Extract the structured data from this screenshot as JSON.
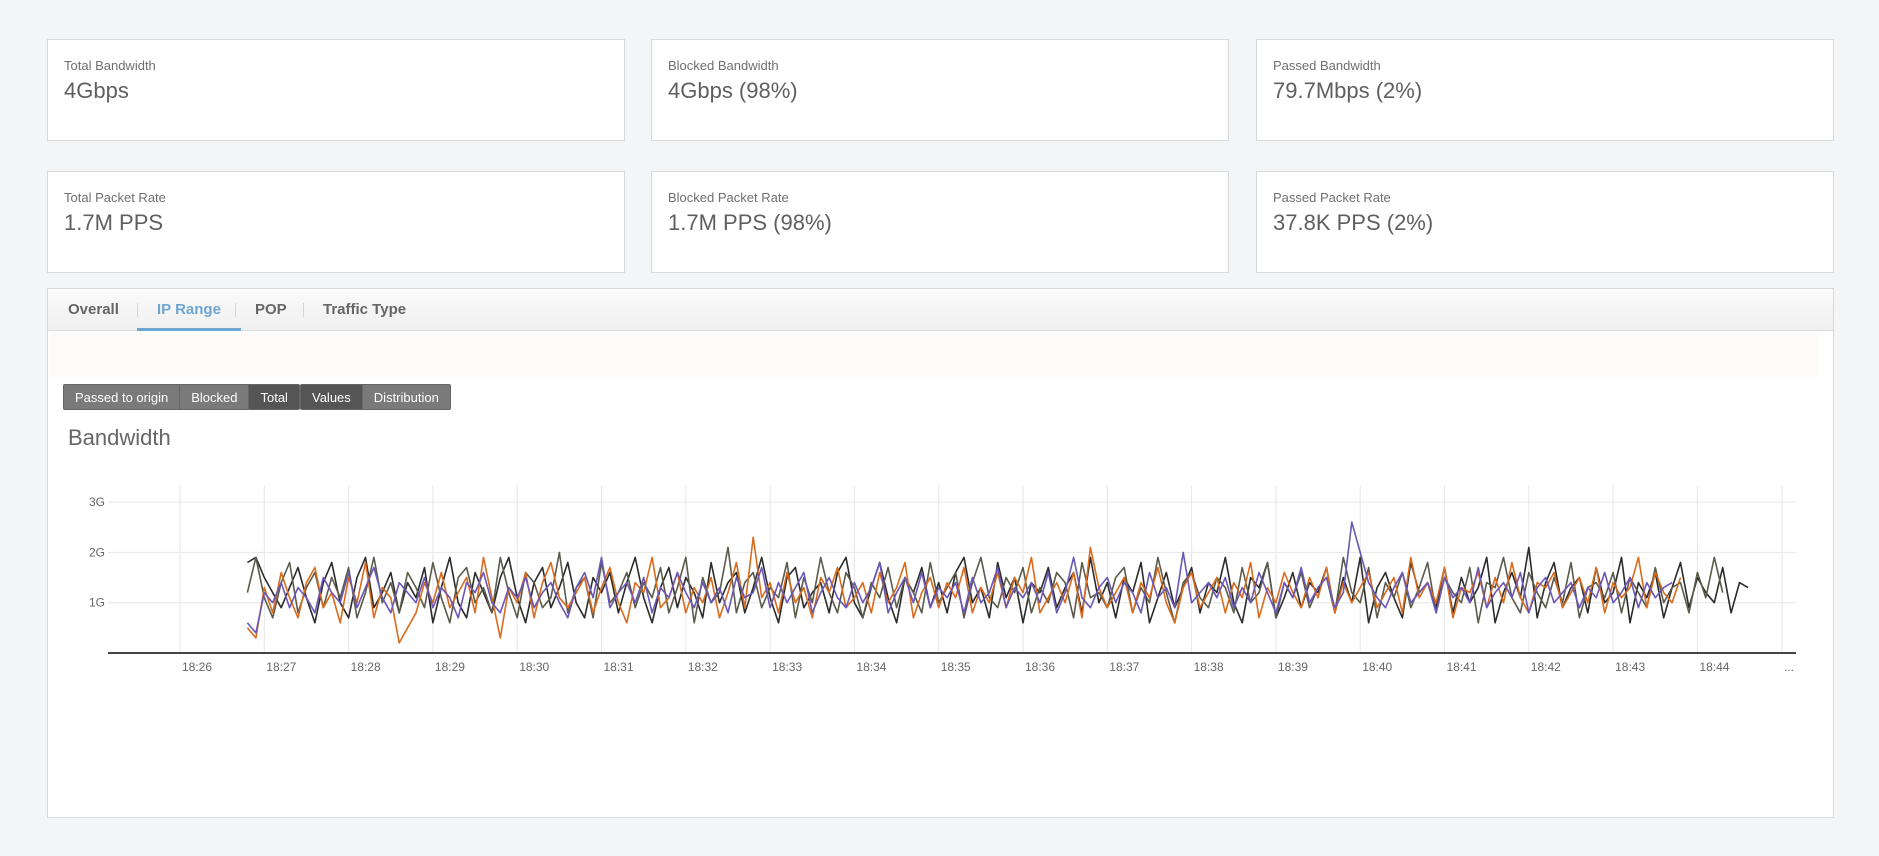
{
  "stats": [
    {
      "label": "Total Bandwidth",
      "value": "4Gbps"
    },
    {
      "label": "Blocked Bandwidth",
      "value": "4Gbps (98%)"
    },
    {
      "label": "Passed Bandwidth",
      "value": "79.7Mbps (2%)"
    },
    {
      "label": "Total Packet Rate",
      "value": "1.7M PPS"
    },
    {
      "label": "Blocked Packet Rate",
      "value": "1.7M PPS (98%)"
    },
    {
      "label": "Passed Packet Rate",
      "value": "37.8K PPS (2%)"
    }
  ],
  "tabs": [
    {
      "label": "Overall",
      "active": false
    },
    {
      "label": "IP Range",
      "active": true
    },
    {
      "label": "POP",
      "active": false
    },
    {
      "label": "Traffic Type",
      "active": false
    }
  ],
  "filters": {
    "traffic": [
      {
        "label": "Passed to origin",
        "active": false
      },
      {
        "label": "Blocked",
        "active": false
      },
      {
        "label": "Total",
        "active": true
      }
    ],
    "view": [
      {
        "label": "Values",
        "active": true
      },
      {
        "label": "Distribution",
        "active": false
      }
    ]
  },
  "chart_title": "Bandwidth",
  "chart_data": {
    "type": "line",
    "title": "Bandwidth",
    "xlabel": "",
    "ylabel": "",
    "y_tick_labels": [
      "1G",
      "2G",
      "3G"
    ],
    "ylim": [
      0,
      3.3
    ],
    "x_tick_labels": [
      "18:26",
      "18:27",
      "18:28",
      "18:29",
      "18:30",
      "18:31",
      "18:32",
      "18:33",
      "18:34",
      "18:35",
      "18:36",
      "18:37",
      "18:38",
      "18:39",
      "18:40",
      "18:41",
      "18:42",
      "18:43",
      "18:44",
      "..."
    ],
    "x_start": "18:26:48",
    "x_step_seconds": 6,
    "grid": true,
    "series": [
      {
        "color": "#2b2b2b",
        "values": [
          1.8,
          1.9,
          1.5,
          1.2,
          0.9,
          1.3,
          1.7,
          1.1,
          0.6,
          1.4,
          1.8,
          1.0,
          0.7,
          1.5,
          1.9,
          0.9,
          1.2,
          1.6,
          0.8,
          1.4,
          1.1,
          1.7,
          0.6,
          1.3,
          1.9,
          1.0,
          0.7,
          1.6,
          1.2,
          0.8,
          1.5,
          1.9,
          1.1,
          0.6,
          1.4,
          1.7,
          0.9,
          1.3,
          1.8,
          1.0,
          0.7,
          1.5,
          1.2,
          1.6,
          0.8,
          1.4,
          1.9,
          1.1,
          0.6,
          1.3,
          1.7,
          0.9,
          1.5,
          1.2,
          0.7,
          1.8,
          1.0,
          1.4,
          1.6,
          0.8,
          1.3,
          1.9,
          1.1,
          0.6,
          1.5,
          1.7,
          0.9,
          1.2,
          1.4,
          0.8,
          1.6,
          1.9,
          1.0,
          0.7,
          1.3,
          1.8,
          1.1,
          0.6,
          1.5,
          1.2,
          1.7,
          0.9,
          1.4,
          0.8,
          1.6,
          1.9,
          1.0,
          1.3,
          0.7,
          1.8,
          1.1,
          1.5,
          0.6,
          1.4,
          1.2,
          1.7,
          0.9,
          1.3,
          1.6,
          0.8,
          1.9,
          1.0,
          1.4,
          0.7,
          1.5,
          1.2,
          1.8,
          0.6,
          1.1,
          1.6,
          0.9,
          1.3,
          1.7,
          0.8,
          1.4,
          1.2,
          1.9,
          1.0,
          0.6,
          1.5,
          1.3,
          1.8,
          0.7,
          1.1,
          1.6,
          0.9,
          1.4,
          1.2,
          1.7,
          0.8,
          1.5,
          1.0,
          1.9,
          0.6,
          1.3,
          1.6,
          1.1,
          0.7,
          1.8,
          1.2,
          1.4,
          0.9,
          1.7,
          0.8,
          1.5,
          1.0,
          1.3,
          1.9,
          0.6,
          1.2,
          1.6,
          1.1,
          2.1,
          0.7,
          1.4,
          1.8,
          0.9,
          1.3,
          1.5,
          0.8,
          1.7,
          1.0,
          1.2,
          1.9,
          0.6,
          1.4,
          1.1,
          1.6,
          0.7,
          1.3,
          1.8,
          0.9,
          1.5,
          1.2,
          1.0,
          1.7,
          0.8,
          1.4,
          1.3
        ]
      },
      {
        "color": "#5b5b4b",
        "values": [
          1.2,
          1.9,
          1.1,
          0.7,
          1.4,
          1.8,
          0.8,
          1.3,
          1.6,
          0.9,
          1.5,
          1.1,
          1.7,
          0.7,
          1.2,
          1.9,
          1.0,
          1.4,
          0.8,
          1.6,
          1.3,
          0.9,
          1.8,
          1.1,
          0.6,
          1.5,
          1.7,
          1.0,
          1.3,
          0.8,
          1.9,
          1.2,
          0.7,
          1.6,
          1.4,
          0.9,
          1.1,
          2.0,
          0.8,
          1.3,
          1.5,
          0.7,
          1.8,
          1.0,
          1.2,
          1.6,
          0.9,
          1.4,
          1.1,
          1.7,
          0.8,
          1.3,
          1.9,
          0.6,
          1.5,
          1.0,
          1.2,
          2.1,
          0.8,
          1.4,
          1.6,
          0.9,
          1.3,
          1.1,
          1.8,
          0.7,
          1.5,
          1.0,
          1.9,
          1.2,
          0.8,
          1.6,
          1.3,
          0.7,
          1.4,
          1.1,
          1.7,
          0.9,
          1.5,
          1.2,
          0.8,
          1.8,
          1.0,
          1.3,
          1.6,
          0.7,
          1.4,
          1.9,
          1.1,
          0.9,
          1.5,
          1.2,
          1.7,
          0.8,
          1.3,
          1.0,
          1.6,
          1.4,
          0.7,
          1.8,
          1.1,
          1.2,
          0.9,
          1.5,
          1.7,
          0.8,
          1.3,
          1.0,
          1.9,
          1.2,
          0.6,
          1.4,
          1.6,
          1.1,
          0.9,
          1.5,
          1.3,
          0.8,
          1.7,
          1.0,
          1.2,
          1.8,
          0.7,
          1.4,
          1.1,
          1.6,
          0.9,
          1.3,
          1.5,
          0.8,
          1.9,
          1.2,
          1.0,
          1.7,
          0.7,
          1.4,
          1.1,
          1.6,
          0.9,
          1.3,
          1.8,
          0.8,
          1.5,
          1.2,
          1.0,
          1.7,
          0.6,
          1.4,
          1.3,
          1.9,
          1.1,
          0.8,
          1.6,
          1.2,
          0.9,
          1.5,
          1.0,
          1.8,
          0.7,
          1.3,
          1.4,
          1.1,
          1.6,
          0.8,
          1.5,
          1.2,
          0.9,
          1.7,
          1.0,
          1.3,
          1.4,
          0.8,
          1.6,
          1.1,
          1.9,
          1.2
        ]
      },
      {
        "color": "#d96b1c",
        "values": [
          0.5,
          0.3,
          1.3,
          0.8,
          1.6,
          1.1,
          0.7,
          1.4,
          1.7,
          0.9,
          1.2,
          0.6,
          1.5,
          1.0,
          1.8,
          0.7,
          1.3,
          1.1,
          0.2,
          0.5,
          0.8,
          1.4,
          1.0,
          1.6,
          0.9,
          1.2,
          1.5,
          0.8,
          1.9,
          1.1,
          0.3,
          1.3,
          1.0,
          1.6,
          0.7,
          1.4,
          1.8,
          1.1,
          0.9,
          1.2,
          1.5,
          0.8,
          1.3,
          1.7,
          1.0,
          0.6,
          1.4,
          1.2,
          1.9,
          0.9,
          1.1,
          1.6,
          0.8,
          1.3,
          1.0,
          1.5,
          0.7,
          1.2,
          1.8,
          0.9,
          2.3,
          1.1,
          1.4,
          0.8,
          1.6,
          1.0,
          1.3,
          0.7,
          1.5,
          1.2,
          1.7,
          0.9,
          1.1,
          1.4,
          0.8,
          1.6,
          1.0,
          1.3,
          1.8,
          0.7,
          1.2,
          1.5,
          0.9,
          1.4,
          1.1,
          1.7,
          0.8,
          1.3,
          1.0,
          1.6,
          0.9,
          1.5,
          1.2,
          1.9,
          0.8,
          1.1,
          1.4,
          1.0,
          1.6,
          0.7,
          2.1,
          1.3,
          0.9,
          1.2,
          1.5,
          0.8,
          1.4,
          1.1,
          1.7,
          1.0,
          0.6,
          1.3,
          1.6,
          0.9,
          1.2,
          1.5,
          0.8,
          1.4,
          1.1,
          1.8,
          0.7,
          1.3,
          1.0,
          1.6,
          1.2,
          0.9,
          1.5,
          1.1,
          1.7,
          0.8,
          1.4,
          1.0,
          1.3,
          1.6,
          0.9,
          1.2,
          1.5,
          0.8,
          1.9,
          1.1,
          1.4,
          1.0,
          1.7,
          0.7,
          1.3,
          1.2,
          1.6,
          0.9,
          1.5,
          1.0,
          1.8,
          1.1,
          0.8,
          1.4,
          1.3,
          1.6,
          0.9,
          1.2,
          1.5,
          1.0,
          1.7,
          0.8,
          1.4,
          1.1,
          1.3,
          1.9,
          0.9,
          1.6,
          1.2,
          1.0,
          1.5
        ]
      },
      {
        "color": "#6b57b8",
        "values": [
          0.6,
          0.4,
          1.2,
          1.0,
          1.4,
          0.9,
          1.3,
          1.1,
          0.8,
          1.5,
          1.2,
          1.0,
          1.6,
          0.9,
          1.3,
          1.7,
          1.1,
          0.8,
          1.4,
          1.2,
          1.0,
          1.5,
          0.9,
          1.3,
          1.1,
          0.7,
          1.4,
          1.2,
          1.6,
          1.0,
          0.8,
          1.3,
          1.1,
          1.5,
          0.9,
          1.2,
          1.4,
          1.0,
          0.7,
          1.3,
          1.6,
          1.1,
          1.9,
          0.9,
          1.2,
          1.4,
          1.0,
          1.5,
          0.8,
          1.3,
          1.1,
          1.6,
          1.2,
          0.9,
          1.4,
          1.0,
          1.3,
          0.8,
          1.5,
          1.1,
          1.2,
          1.7,
          0.9,
          1.4,
          1.0,
          1.3,
          1.6,
          0.8,
          1.2,
          1.5,
          1.1,
          0.9,
          1.4,
          1.0,
          1.3,
          1.8,
          0.8,
          1.2,
          1.5,
          1.0,
          1.6,
          0.9,
          1.3,
          1.1,
          1.4,
          0.8,
          1.5,
          1.0,
          1.2,
          1.7,
          0.9,
          1.3,
          1.1,
          1.4,
          1.0,
          1.6,
          0.8,
          1.2,
          1.9,
          1.1,
          0.9,
          1.3,
          1.5,
          1.0,
          1.4,
          1.2,
          0.8,
          1.6,
          1.1,
          1.3,
          0.9,
          2.0,
          1.0,
          1.2,
          1.4,
          1.1,
          1.5,
          0.9,
          1.3,
          1.0,
          1.6,
          1.2,
          0.8,
          1.4,
          1.1,
          1.7,
          1.0,
          1.3,
          1.5,
          0.9,
          1.2,
          2.6,
          2.0,
          1.4,
          1.1,
          0.9,
          1.3,
          1.6,
          1.0,
          1.2,
          1.4,
          0.8,
          1.5,
          1.1,
          1.3,
          1.0,
          1.7,
          0.9,
          1.2,
          1.4,
          1.1,
          1.6,
          0.8,
          1.3,
          1.5,
          1.0,
          1.2,
          1.4,
          0.9,
          1.3,
          1.1,
          1.6,
          1.0,
          1.2,
          1.5,
          0.9,
          1.4,
          1.1,
          1.3,
          1.4
        ]
      }
    ]
  }
}
